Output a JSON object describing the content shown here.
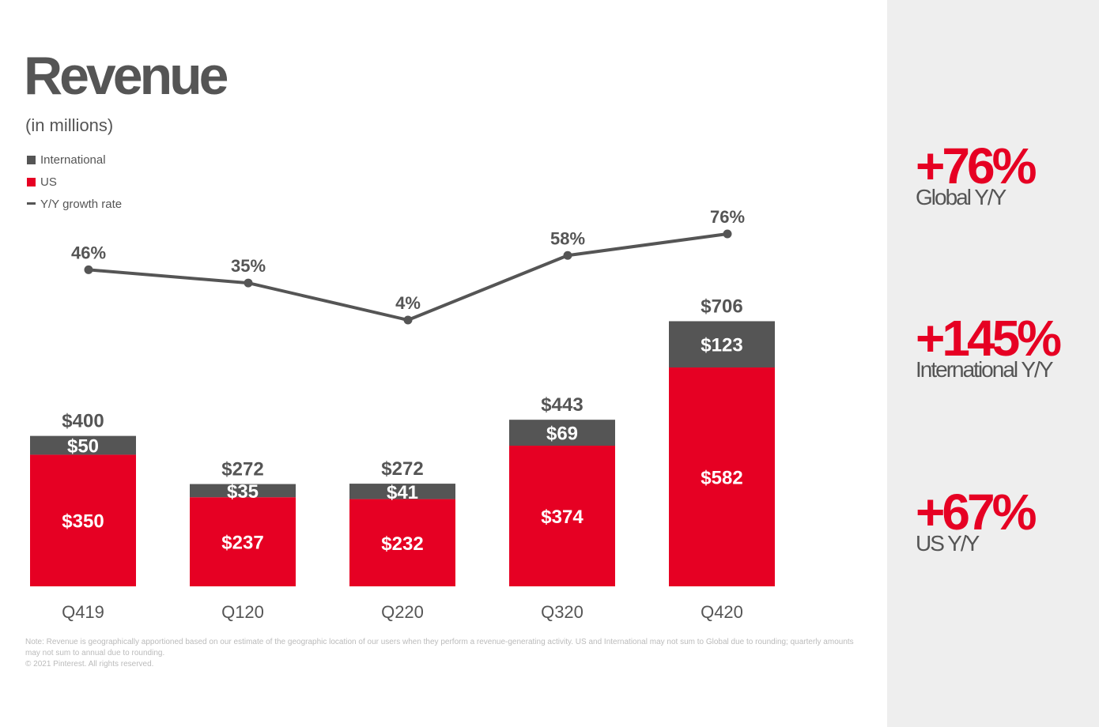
{
  "title": "Revenue",
  "subtitle": "(in millions)",
  "legend": {
    "international": "International",
    "us": "US",
    "growth": "Y/Y growth rate"
  },
  "colors": {
    "international": "#555555",
    "us": "#e60023",
    "growth_line": "#555555",
    "accent": "#e60023",
    "panel_bg": "#eeeeee"
  },
  "chart_data": {
    "type": "bar",
    "stacked": true,
    "categories": [
      "Q419",
      "Q120",
      "Q220",
      "Q320",
      "Q420"
    ],
    "series": [
      {
        "name": "US",
        "values": [
          350,
          237,
          232,
          374,
          582
        ],
        "labels": [
          "$350",
          "$237",
          "$232",
          "$374",
          "$582"
        ]
      },
      {
        "name": "International",
        "values": [
          50,
          35,
          41,
          69,
          123
        ],
        "labels": [
          "$50",
          "$35",
          "$41",
          "$69",
          "$123"
        ]
      }
    ],
    "totals": [
      400,
      272,
      272,
      443,
      706
    ],
    "total_labels": [
      "$400",
      "$272",
      "$272",
      "$443",
      "$706"
    ],
    "line_series": {
      "name": "Y/Y growth rate",
      "values": [
        46,
        35,
        4,
        58,
        76
      ],
      "labels": [
        "46%",
        "35%",
        "4%",
        "58%",
        "76%"
      ]
    },
    "ylim": [
      0,
      706
    ],
    "grid": false,
    "legend_position": "top-left"
  },
  "footnote": {
    "line1": "Note: Revenue is geographically apportioned based on our estimate of the geographic location of our users when they perform a revenue-generating activity. US and International may not sum to Global due to rounding; quarterly amounts may not sum to annual due to rounding.",
    "line2": "© 2021 Pinterest. All rights reserved."
  },
  "kpis": [
    {
      "value": "+76%",
      "label": "Global Y/Y"
    },
    {
      "value": "+145%",
      "label": "International Y/Y"
    },
    {
      "value": "+67%",
      "label": "US Y/Y"
    }
  ]
}
